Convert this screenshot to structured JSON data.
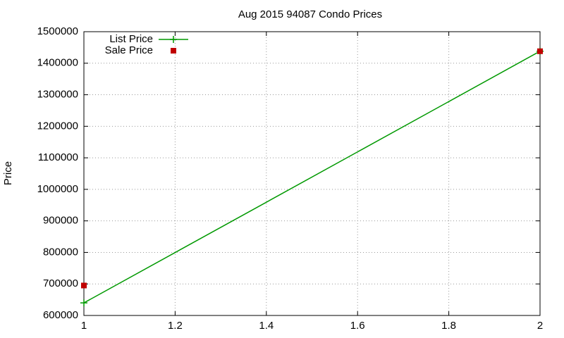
{
  "chart_data": {
    "type": "line",
    "title": "Aug 2015 94087 Condo Prices",
    "y_label": "Price",
    "x": [
      1,
      2
    ],
    "series": [
      {
        "name": "List Price",
        "color": "#009900",
        "style": "linespoints",
        "values": [
          640000,
          1438000
        ]
      },
      {
        "name": "Sale Price",
        "color": "#c00000",
        "style": "points",
        "values": [
          695000,
          1438000
        ]
      }
    ],
    "xlim": [
      1,
      2
    ],
    "xticks": [
      1,
      1.2,
      1.4,
      1.6,
      1.8,
      2
    ],
    "ylim": [
      600000,
      1500000
    ],
    "yticks": [
      600000,
      700000,
      800000,
      900000,
      1000000,
      1100000,
      1200000,
      1300000,
      1400000,
      1500000
    ],
    "grid": true,
    "legend": "top-left"
  }
}
